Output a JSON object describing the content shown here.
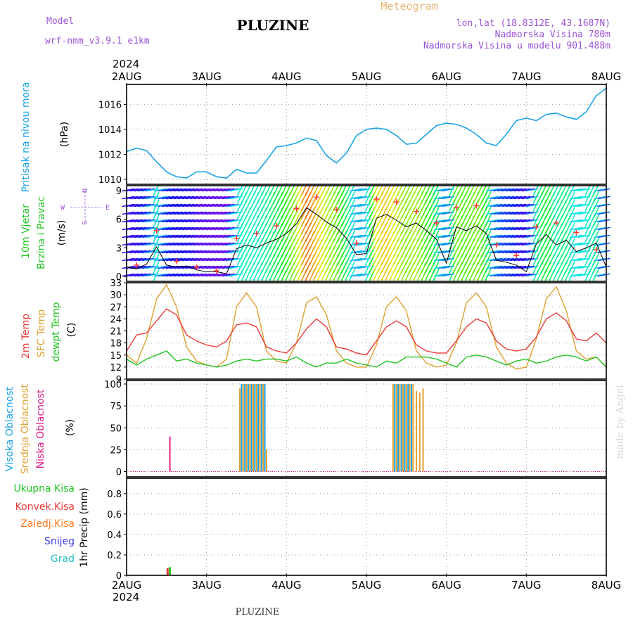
{
  "header": {
    "model_label": "Model",
    "model_name": "wrf-nmm_v3.9.1  e1km",
    "title": "PLUZINE",
    "meteogram": "Meteogram",
    "lonlat": "lon,lat (18.8312E, 43.1687N)",
    "altitude": "Nadmorska Visina 780m",
    "model_altitude": "Nadmorska Visina u modelu 901.488m",
    "footer_title": "PLUZINE",
    "watermark": "made by Angel"
  },
  "time_axis": {
    "year": "2024",
    "labels": [
      "2AUG",
      "3AUG",
      "4AUG",
      "5AUG",
      "6AUG",
      "7AUG",
      "8AUG"
    ]
  },
  "colors": {
    "pressure": "#1aa3e6",
    "temp": "#e83a3a",
    "sfc": "#e0a030",
    "dew": "#22c422",
    "speed": "#000000",
    "gust": "#ff3a3a",
    "high_cloud": "#1aa3e6",
    "mid_cloud": "#e0a030",
    "low_cloud": "#e0208a",
    "total_precip": "#22c422",
    "conv_precip": "#e83a3a",
    "frz_precip": "#ff7a20",
    "snow": "#4040e0",
    "hail": "#20c0c0"
  },
  "panels": {
    "pressure": {
      "label": "Pritisak na nivou mora",
      "unit": "(hPa)",
      "ticks": [
        "1010",
        "1012",
        "1014",
        "1016"
      ]
    },
    "wind": {
      "label1": "10m Vjetar",
      "label2": "Brzina i Pravac",
      "unit": "(m/s)",
      "ticks": [
        "0",
        "3",
        "6",
        "9"
      ],
      "compass": [
        "N",
        "S",
        "W",
        "E"
      ]
    },
    "temp": {
      "label1": "2m Temp",
      "label2": "SFC Temp",
      "label3": "dewpt Temp",
      "unit": "(C)",
      "ticks": [
        "9",
        "12",
        "15",
        "18",
        "21",
        "24",
        "27",
        "30",
        "33"
      ]
    },
    "cloud": {
      "label1": "Visoka Oblacnost",
      "label2": "Srednja Oblacnost",
      "label3": "Niska Oblacnost",
      "unit": "(%)",
      "ticks": [
        "0",
        "25",
        "50",
        "75",
        "100"
      ]
    },
    "precip": {
      "unit": "1hr Precip (mm)",
      "legend": [
        "Ukupna Kisa",
        "Konvek.Kisa",
        "Zaledj.Kisa",
        "Snijeg",
        "Grad"
      ],
      "ticks": [
        "0",
        "0.2",
        "0.4",
        "0.6",
        "0.8"
      ]
    }
  },
  "chart_data": [
    {
      "type": "line",
      "title": "Pritisak na nivou mora",
      "ylabel": "(hPa)",
      "xlim": [
        0,
        144
      ],
      "ylim": [
        1009.6,
        1017.6
      ],
      "series": [
        {
          "name": "Pritisak na nivou mora",
          "x_hours": [
            0,
            3,
            6,
            9,
            12,
            15,
            18,
            21,
            24,
            27,
            30,
            33,
            36,
            39,
            42,
            45,
            48,
            51,
            54,
            57,
            60,
            63,
            66,
            69,
            72,
            75,
            78,
            81,
            84,
            87,
            90,
            93,
            96,
            99,
            102,
            105,
            108,
            111,
            114,
            117,
            120,
            123,
            126,
            129,
            132,
            135,
            138,
            141,
            144
          ],
          "values": [
            1012.2,
            1012.5,
            1012.3,
            1011.4,
            1010.6,
            1010.2,
            1010.1,
            1010.6,
            1010.6,
            1010.2,
            1010.1,
            1010.8,
            1010.5,
            1010.5,
            1011.5,
            1012.6,
            1012.7,
            1012.9,
            1013.3,
            1013.1,
            1011.9,
            1011.3,
            1012.1,
            1013.5,
            1014.0,
            1014.1,
            1014.0,
            1013.5,
            1012.8,
            1012.9,
            1013.6,
            1014.3,
            1014.5,
            1014.4,
            1014.1,
            1013.6,
            1012.9,
            1012.7,
            1013.6,
            1014.7,
            1014.9,
            1014.7,
            1015.2,
            1015.3,
            1015.0,
            1014.8,
            1015.4,
            1016.7,
            1017.3
          ]
        }
      ]
    },
    {
      "type": "line",
      "title": "10m Vjetar Brzina i Pravac",
      "ylabel": "(m/s)",
      "xlim": [
        0,
        144
      ],
      "ylim": [
        -0.5,
        9.5
      ],
      "series": [
        {
          "name": "Brzina",
          "x_hours": [
            0,
            3,
            6,
            9,
            12,
            15,
            18,
            21,
            24,
            27,
            30,
            33,
            36,
            39,
            42,
            45,
            48,
            51,
            54,
            57,
            60,
            63,
            66,
            69,
            72,
            75,
            78,
            81,
            84,
            87,
            90,
            93,
            96,
            99,
            102,
            105,
            108,
            111,
            114,
            117,
            120,
            123,
            126,
            129,
            132,
            135,
            138,
            141,
            144
          ],
          "values": [
            1.0,
            0.8,
            1.3,
            3.1,
            1.2,
            1.0,
            1.1,
            0.7,
            0.5,
            0.5,
            0.3,
            2.9,
            3.3,
            3.0,
            3.5,
            3.9,
            4.5,
            5.5,
            7.2,
            6.5,
            5.7,
            5.1,
            4.0,
            2.3,
            2.4,
            6.1,
            6.5,
            5.9,
            5.2,
            5.6,
            4.8,
            3.9,
            1.4,
            5.2,
            4.8,
            5.3,
            4.5,
            1.7,
            1.5,
            1.2,
            0.5,
            3.4,
            4.4,
            3.3,
            3.8,
            2.6,
            3.0,
            3.5,
            1.0
          ]
        },
        {
          "name": "Udar",
          "x_hours": [
            3,
            9,
            15,
            21,
            27,
            33,
            39,
            45,
            51,
            57,
            63,
            69,
            75,
            81,
            87,
            93,
            99,
            105,
            111,
            117,
            123,
            129,
            135,
            141
          ],
          "values": [
            1.2,
            4.8,
            1.6,
            1.0,
            0.6,
            4.0,
            4.5,
            5.3,
            7.1,
            8.3,
            7.0,
            3.5,
            8.1,
            7.8,
            6.8,
            5.6,
            7.2,
            7.4,
            3.3,
            2.2,
            5.2,
            5.6,
            4.6,
            2.8
          ]
        }
      ]
    },
    {
      "type": "line",
      "title": "2m Temp / SFC Temp / dewpt Temp",
      "ylabel": "(C)",
      "xlim": [
        0,
        144
      ],
      "ylim": [
        9,
        33
      ],
      "series": [
        {
          "name": "2m Temp",
          "x_hours": [
            0,
            3,
            6,
            9,
            12,
            15,
            18,
            21,
            24,
            27,
            30,
            33,
            36,
            39,
            42,
            45,
            48,
            51,
            54,
            57,
            60,
            63,
            66,
            69,
            72,
            75,
            78,
            81,
            84,
            87,
            90,
            93,
            96,
            99,
            102,
            105,
            108,
            111,
            114,
            117,
            120,
            123,
            126,
            129,
            132,
            135,
            138,
            141,
            144
          ],
          "values": [
            16.0,
            20.0,
            20.5,
            23.5,
            26.5,
            25.0,
            20.0,
            18.5,
            17.5,
            17.0,
            18.5,
            22.5,
            23.0,
            22.0,
            17.0,
            16.0,
            15.5,
            18.0,
            21.5,
            24.0,
            22.0,
            17.0,
            16.5,
            15.5,
            15.0,
            18.5,
            22.0,
            23.5,
            22.0,
            17.5,
            16.0,
            15.5,
            15.5,
            18.5,
            22.0,
            24.0,
            23.0,
            18.5,
            16.5,
            16.0,
            16.5,
            19.5,
            24.0,
            25.5,
            23.5,
            19.0,
            18.5,
            20.5,
            18.0
          ]
        },
        {
          "name": "SFC Temp",
          "x_hours": [
            0,
            3,
            6,
            9,
            12,
            15,
            18,
            21,
            24,
            27,
            30,
            33,
            36,
            39,
            42,
            45,
            48,
            51,
            54,
            57,
            60,
            63,
            66,
            69,
            72,
            75,
            78,
            81,
            84,
            87,
            90,
            93,
            96,
            99,
            102,
            105,
            108,
            111,
            114,
            117,
            120,
            123,
            126,
            129,
            132,
            135,
            138,
            141,
            144
          ],
          "values": [
            15.0,
            13.0,
            19.0,
            29.0,
            32.5,
            27.0,
            17.0,
            13.5,
            12.5,
            12.0,
            14.0,
            27.0,
            30.5,
            27.0,
            16.0,
            13.5,
            13.0,
            18.0,
            28.0,
            29.5,
            25.0,
            16.0,
            13.0,
            12.0,
            12.0,
            17.5,
            27.0,
            29.5,
            26.0,
            16.0,
            13.0,
            12.0,
            12.5,
            18.0,
            28.0,
            30.5,
            27.0,
            17.0,
            13.0,
            11.5,
            12.0,
            19.0,
            29.0,
            32.0,
            26.0,
            16.0,
            14.0,
            14.5,
            12.0
          ]
        },
        {
          "name": "dewpt Temp",
          "x_hours": [
            0,
            3,
            6,
            9,
            12,
            15,
            18,
            21,
            24,
            27,
            30,
            33,
            36,
            39,
            42,
            45,
            48,
            51,
            54,
            57,
            60,
            63,
            66,
            69,
            72,
            75,
            78,
            81,
            84,
            87,
            90,
            93,
            96,
            99,
            102,
            105,
            108,
            111,
            114,
            117,
            120,
            123,
            126,
            129,
            132,
            135,
            138,
            141,
            144
          ],
          "values": [
            14.0,
            12.5,
            14.0,
            15.0,
            16.0,
            13.5,
            14.0,
            13.0,
            12.5,
            12.0,
            12.5,
            13.5,
            14.0,
            13.5,
            14.0,
            14.0,
            13.5,
            14.5,
            13.0,
            12.0,
            13.0,
            13.0,
            14.0,
            13.0,
            12.5,
            12.0,
            13.5,
            13.0,
            14.5,
            14.5,
            14.5,
            14.0,
            13.0,
            12.0,
            14.5,
            15.0,
            14.5,
            13.5,
            12.5,
            13.5,
            14.0,
            13.0,
            13.5,
            14.5,
            15.0,
            14.5,
            13.5,
            14.5,
            12.0
          ]
        }
      ]
    },
    {
      "type": "bar",
      "title": "Oblacnost",
      "ylabel": "(%)",
      "xlim": [
        0,
        144
      ],
      "ylim": [
        -6,
        104
      ],
      "series": [
        {
          "name": "Visoka Oblacnost",
          "x_hours": [
            34.5,
            35.5,
            36.5,
            37.5,
            38.5,
            39.5,
            40.5,
            41.5,
            80.5,
            81.5,
            82.5,
            83.5,
            84.5,
            85.5
          ],
          "values": [
            100,
            100,
            100,
            100,
            100,
            100,
            100,
            100,
            100,
            100,
            100,
            100,
            100,
            100
          ]
        },
        {
          "name": "Srednja Oblacnost",
          "x_hours": [
            34,
            35,
            36,
            37,
            38,
            39,
            40,
            41,
            42,
            80,
            81,
            82,
            83,
            84,
            85,
            86,
            87,
            88,
            89
          ],
          "values": [
            95,
            100,
            100,
            100,
            100,
            100,
            100,
            100,
            25,
            100,
            100,
            100,
            100,
            100,
            100,
            100,
            92,
            90,
            95
          ]
        },
        {
          "name": "Niska Oblacnost",
          "x_hours": [
            13
          ],
          "values": [
            40
          ]
        }
      ]
    },
    {
      "type": "bar",
      "title": "1hr Precip",
      "ylabel": "1hr Precip (mm)",
      "xlim": [
        0,
        144
      ],
      "ylim": [
        0,
        0.95
      ],
      "series": [
        {
          "name": "Ukupna Kisa",
          "x_hours": [
            13
          ],
          "values": [
            0.08
          ]
        },
        {
          "name": "Konvek.Kisa",
          "x_hours": [
            12.3
          ],
          "values": [
            0.07
          ]
        }
      ]
    }
  ]
}
